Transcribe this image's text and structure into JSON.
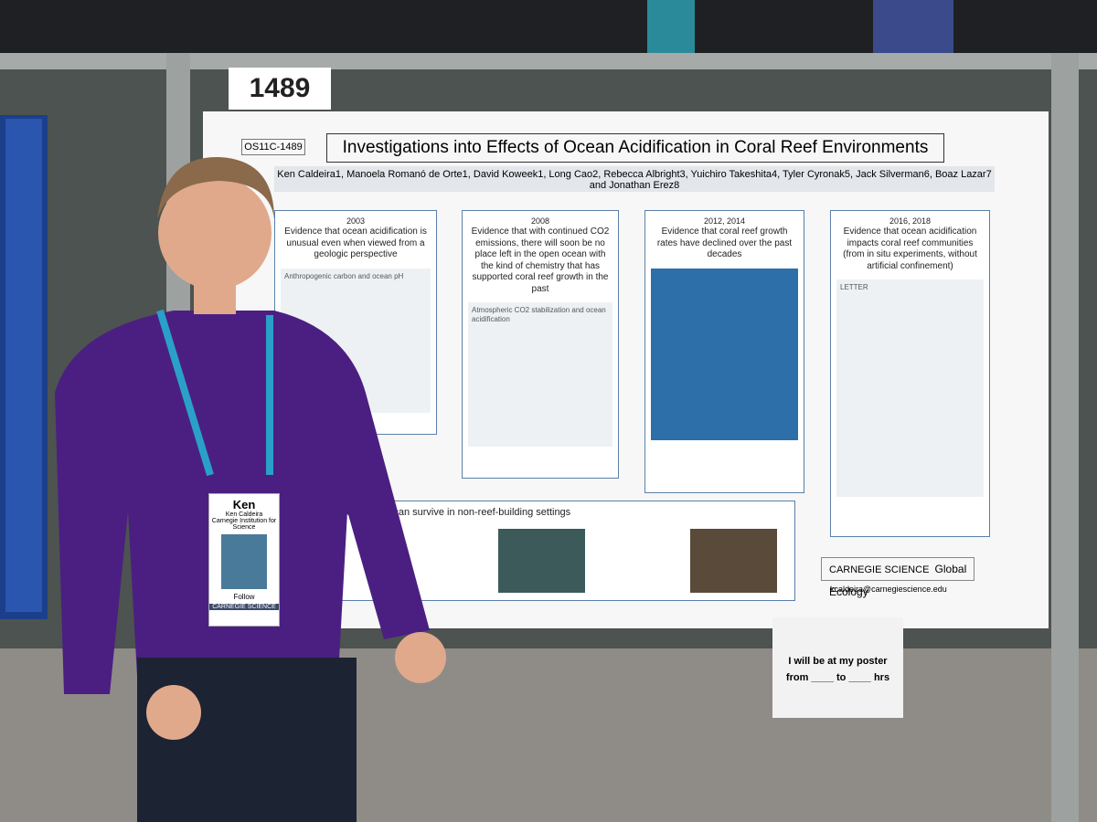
{
  "booth_number": "1489",
  "poster": {
    "id": "OS11C-1489",
    "title": "Investigations into Effects of Ocean Acidification in Coral Reef Environments",
    "authors": "Ken Caldeira1, Manoela Romanó de Orte1, David Koweek1, Long Cao2, Rebecca Albright3, Yuichiro Takeshita4, Tyler Cyronak5, Jack Silverman6, Boaz Lazar7 and Jonathan Erez8",
    "panels": [
      {
        "years": "2003",
        "heading": "Evidence that ocean acidification is unusual even when viewed from a geologic perspective",
        "figure": "Anthropogenic carbon and ocean pH"
      },
      {
        "years": "2008",
        "heading": "Evidence that with continued CO2 emissions, there will soon be no place left in the open ocean with the kind of chemistry that has supported coral reef growth in the past",
        "figure": "Atmospheric CO2 stabilization and ocean acidification"
      },
      {
        "years": "2012, 2014",
        "heading": "Evidence that coral reef growth rates have declined over the past decades"
      },
      {
        "years": "2016, 2018",
        "heading": "Evidence that ocean acidification impacts coral reef communities (from in situ experiments, without artificial confinement)",
        "figure": "LETTER"
      }
    ],
    "bottom_heading": "ere corals can survive in non-reef-building settings",
    "logo": "CARNEGIE SCIENCE",
    "unit": "Global Ecology",
    "email": "kcaldeira@carnegiescience.edu"
  },
  "badge": {
    "name": "Ken",
    "full_name": "Ken Caldeira",
    "affiliation": "Carnegie Institution for Science",
    "follow": "Follow",
    "logo": "CARNEGIE SCIENCE"
  },
  "sign": {
    "line1": "I will be at my poster",
    "from": "from",
    "to": "to",
    "hrs": "hrs"
  }
}
